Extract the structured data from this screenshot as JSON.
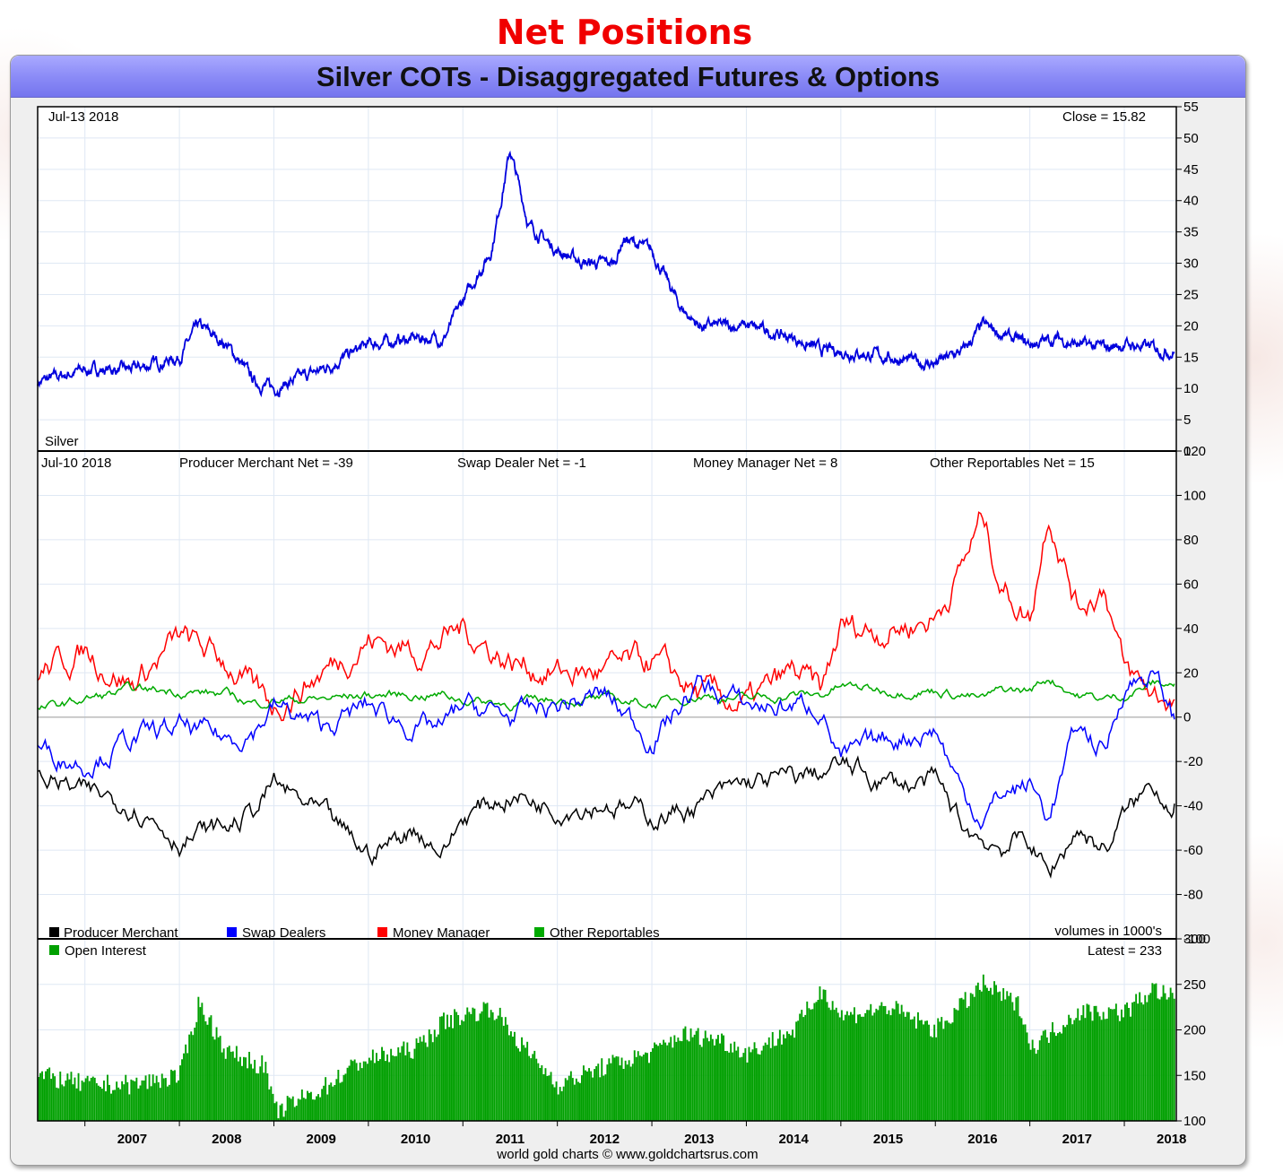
{
  "page_title": "Net Positions",
  "chart_title": "Silver COTs - Disaggregated Futures & Options",
  "footer_credit": "world gold charts © www.goldchartsrus.com",
  "panels": {
    "price": {
      "date": "Jul-13  2018",
      "close": "Close = 15.82",
      "label": "Silver",
      "y_ticks": [
        "0",
        "5",
        "10",
        "15",
        "20",
        "25",
        "30",
        "35",
        "40",
        "45",
        "50",
        "55"
      ]
    },
    "net": {
      "date": "Jul-10  2018",
      "stat_producer": "Producer Merchant Net = -39",
      "stat_swap": "Swap Dealer Net = -1",
      "stat_money": "Money Manager Net = 8",
      "stat_other": "Other Reportables Net = 15",
      "volumes_note": "volumes in 1000's",
      "y_ticks": [
        "-100",
        "-80",
        "-60",
        "-40",
        "-20",
        "0",
        "20",
        "40",
        "60",
        "80",
        "100",
        "120"
      ],
      "legend": [
        {
          "label": "Producer Merchant",
          "color": "#000000"
        },
        {
          "label": "Swap Dealers",
          "color": "#0000ff"
        },
        {
          "label": "Money Manager",
          "color": "#ff0000"
        },
        {
          "label": "Other Reportables",
          "color": "#00aa00"
        }
      ]
    },
    "oi": {
      "legend_label": "Open Interest",
      "latest": "Latest = 233",
      "y_ticks": [
        "100",
        "150",
        "200",
        "250",
        "300"
      ]
    }
  },
  "x_axis_years": [
    "2007",
    "2008",
    "2009",
    "2010",
    "2011",
    "2012",
    "2013",
    "2014",
    "2015",
    "2016",
    "2017",
    "2018"
  ],
  "colors": {
    "price_line": "#0000dd",
    "producer": "#000000",
    "swap": "#0000ff",
    "money": "#ff0000",
    "other": "#00aa00",
    "oi_bars": "#00a000",
    "banner": "#8c8cf7",
    "title_red": "#f00000"
  },
  "chart_data": [
    {
      "type": "line",
      "title": "Silver",
      "ylim": [
        0,
        55
      ],
      "x": [
        2006.5,
        2007.0,
        2007.5,
        2008.0,
        2008.2,
        2008.5,
        2008.8,
        2009.0,
        2009.5,
        2010.0,
        2010.5,
        2010.8,
        2011.0,
        2011.3,
        2011.5,
        2011.7,
        2012.0,
        2012.3,
        2012.6,
        2012.7,
        2013.0,
        2013.3,
        2013.5,
        2014.0,
        2014.5,
        2014.8,
        2015.0,
        2015.5,
        2015.9,
        2016.0,
        2016.3,
        2016.5,
        2016.8,
        2017.0,
        2017.3,
        2017.5,
        2017.8,
        2018.0,
        2018.3,
        2018.53
      ],
      "series": [
        {
          "values": [
            11,
            13,
            13,
            15,
            20,
            17,
            11,
            10,
            13,
            17,
            18,
            18,
            24,
            32,
            48,
            36,
            32,
            30,
            30,
            34,
            32,
            23,
            20,
            20,
            18,
            16,
            16,
            15,
            14,
            14,
            16,
            20,
            18,
            17,
            18,
            17,
            16.5,
            17,
            16.5,
            15.82
          ]
        }
      ]
    },
    {
      "type": "line",
      "ylim": [
        -100,
        120
      ],
      "x": [
        2006.5,
        2007.0,
        2007.5,
        2008.0,
        2008.5,
        2008.8,
        2009.0,
        2009.5,
        2010.0,
        2010.5,
        2010.8,
        2011.0,
        2011.5,
        2012.0,
        2012.5,
        2013.0,
        2013.5,
        2014.0,
        2014.5,
        2014.8,
        2015.0,
        2015.5,
        2016.0,
        2016.3,
        2016.5,
        2016.7,
        2017.0,
        2017.2,
        2017.5,
        2017.8,
        2018.0,
        2018.3,
        2018.53
      ],
      "series": [
        {
          "name": "Producer Merchant",
          "values": [
            -25,
            -35,
            -38,
            -55,
            -50,
            -42,
            -30,
            -45,
            -62,
            -50,
            -60,
            -45,
            -35,
            -40,
            -38,
            -45,
            -40,
            -30,
            -28,
            -25,
            -22,
            -30,
            -30,
            -50,
            -55,
            -58,
            -55,
            -72,
            -50,
            -60,
            -45,
            -30,
            -39
          ]
        },
        {
          "name": "Swap Dealers",
          "values": [
            -15,
            -20,
            -10,
            -5,
            -10,
            -5,
            5,
            -5,
            5,
            -5,
            -5,
            5,
            0,
            5,
            10,
            -10,
            15,
            5,
            5,
            5,
            -20,
            -10,
            -5,
            -35,
            -45,
            -35,
            -30,
            -45,
            -5,
            -15,
            15,
            20,
            -1
          ]
        },
        {
          "name": "Money Manager",
          "values": [
            20,
            30,
            15,
            35,
            25,
            10,
            5,
            20,
            35,
            30,
            35,
            40,
            25,
            20,
            20,
            25,
            10,
            5,
            20,
            10,
            40,
            40,
            45,
            70,
            90,
            60,
            45,
            95,
            50,
            60,
            20,
            10,
            8
          ]
        },
        {
          "name": "Other Reportables",
          "values": [
            3,
            8,
            12,
            12,
            10,
            6,
            8,
            8,
            10,
            10,
            10,
            8,
            6,
            8,
            8,
            6,
            10,
            8,
            10,
            10,
            14,
            12,
            12,
            10,
            8,
            12,
            12,
            18,
            10,
            8,
            10,
            15,
            15
          ]
        }
      ]
    },
    {
      "type": "bar",
      "title": "Open Interest",
      "ylim": [
        100,
        300
      ],
      "x": [
        2006.5,
        2007.0,
        2007.5,
        2008.0,
        2008.2,
        2008.5,
        2008.9,
        2009.0,
        2009.5,
        2009.9,
        2010.5,
        2010.8,
        2011.3,
        2011.6,
        2012.0,
        2012.5,
        2013.0,
        2013.3,
        2013.7,
        2014.0,
        2014.5,
        2014.8,
        2015.0,
        2015.5,
        2016.0,
        2016.3,
        2016.5,
        2016.9,
        2017.0,
        2017.5,
        2018.0,
        2018.3,
        2018.53
      ],
      "values": [
        150,
        140,
        140,
        150,
        230,
        175,
        160,
        110,
        135,
        165,
        180,
        210,
        225,
        185,
        140,
        160,
        175,
        195,
        190,
        175,
        200,
        245,
        215,
        225,
        200,
        230,
        250,
        225,
        180,
        220,
        220,
        245,
        233
      ]
    }
  ]
}
